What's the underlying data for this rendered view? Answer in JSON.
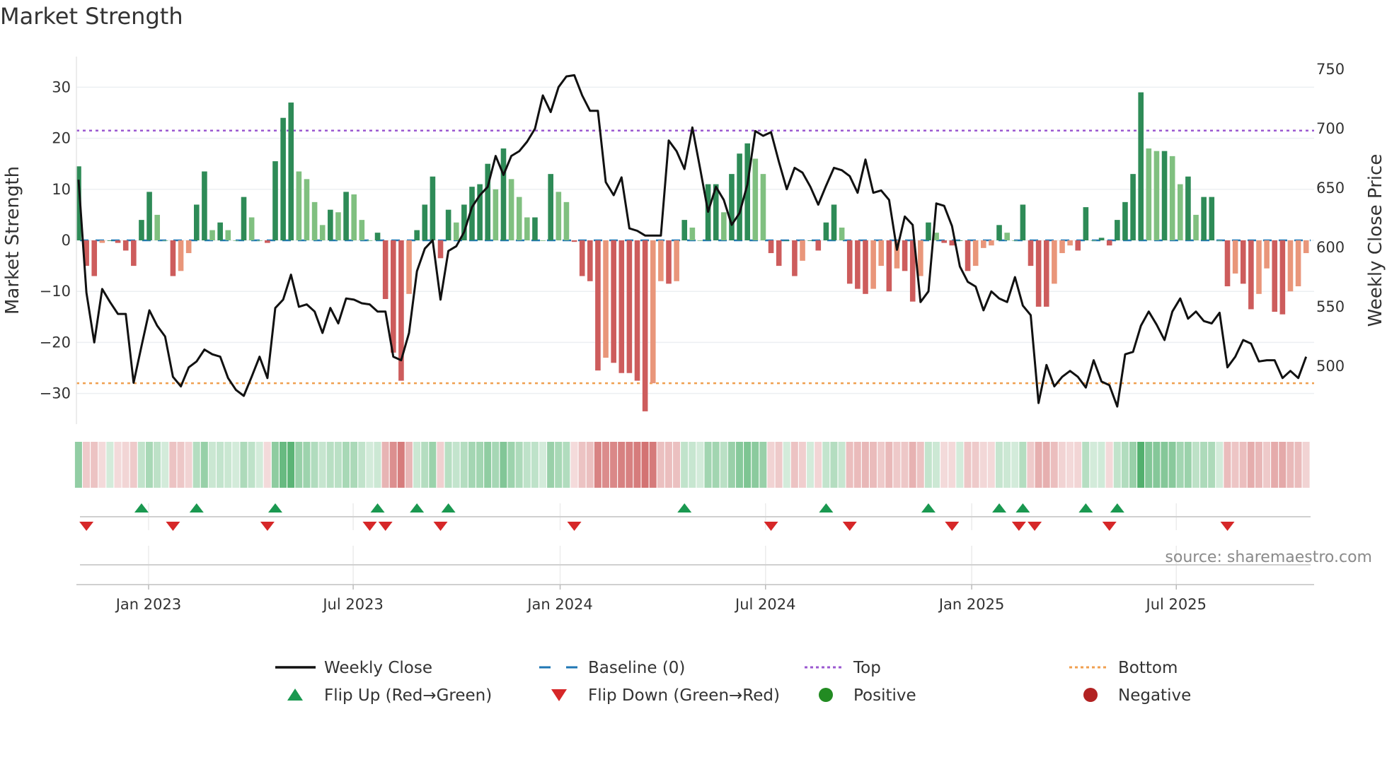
{
  "chart_data": {
    "type": "bar",
    "title": "Market Strength",
    "ylabel": "Market Strength",
    "y2label": "Weekly Close Price",
    "ylim": [
      -36,
      36
    ],
    "y2lim": [
      450,
      765
    ],
    "yticks": [
      30,
      20,
      10,
      0,
      -10,
      -20,
      -30
    ],
    "ytick_labels": [
      "30",
      "20",
      "10",
      "0",
      "−10",
      "−20",
      "−30"
    ],
    "y2ticks": [
      750,
      700,
      650,
      600,
      550,
      500
    ],
    "y2tick_labels": [
      "750",
      "700",
      "650",
      "600",
      "550",
      "500"
    ],
    "xticks": [
      {
        "label": "Jan 2023",
        "week": 8.9
      },
      {
        "label": "Jul 2023",
        "week": 34.9
      },
      {
        "label": "Jan 2024",
        "week": 61.2
      },
      {
        "label": "Jul 2024",
        "week": 87.3
      },
      {
        "label": "Jan 2025",
        "week": 113.5
      },
      {
        "label": "Jul 2025",
        "week": 139.5
      }
    ],
    "top_level": 21.5,
    "bottom_level": -28,
    "strength": [
      14.5,
      -5,
      -7,
      -0.5,
      0,
      -0.5,
      -2,
      -5,
      4,
      9.5,
      5,
      0,
      -7,
      -6,
      -2.5,
      7,
      13.5,
      2,
      3.5,
      2,
      0,
      8.5,
      4.5,
      0,
      -0.5,
      15.5,
      24,
      27,
      13.5,
      12,
      7.5,
      3,
      6,
      5.5,
      9.5,
      9,
      4,
      0,
      1.5,
      -11.5,
      -22,
      -27.5,
      -10.5,
      2,
      7,
      12.5,
      -3.5,
      6,
      3.5,
      7,
      10.5,
      11,
      15,
      10,
      18,
      12,
      8.5,
      4.5,
      4.5,
      0,
      13,
      9.5,
      7.5,
      -0.3,
      -7,
      -8,
      -25.5,
      -23,
      -24,
      -26,
      -26,
      -27.5,
      -33.5,
      -28,
      -8,
      -8.5,
      -8,
      4,
      2.5,
      0,
      11,
      11,
      5.5,
      13,
      17,
      19,
      16,
      13,
      -2.5,
      -5,
      0,
      -7,
      -4,
      0,
      -2,
      3.5,
      7,
      2.5,
      -8.5,
      -9.5,
      -10.5,
      -9.5,
      -5,
      -10,
      -5.5,
      -6,
      -12,
      -7,
      3.5,
      1.5,
      -0.5,
      -1,
      0,
      -6,
      -5,
      -1.5,
      -1,
      3,
      1.5,
      0,
      7,
      -5,
      -13,
      -13,
      -8.5,
      -2.5,
      -1,
      -2,
      6.5,
      0,
      0.5,
      -1,
      4,
      7.5,
      13,
      29,
      18,
      17.5,
      17.5,
      16.5,
      11,
      12.5,
      5,
      8.5,
      8.5,
      0,
      -9,
      -6.5,
      -8.5,
      -13.5,
      -10.5,
      -5.5,
      -14,
      -14.5,
      -10,
      -9,
      -2.5
    ],
    "weekly_close": [
      657,
      562,
      520,
      565,
      554,
      544,
      544,
      486,
      517,
      547,
      534,
      525,
      491,
      483,
      499,
      504,
      514,
      510,
      508,
      490,
      480,
      475,
      491,
      508,
      490,
      549,
      556,
      577,
      550,
      552,
      546,
      528,
      549,
      536,
      557,
      556,
      553,
      552,
      546,
      546,
      508,
      505,
      528,
      580,
      599,
      606,
      556,
      597,
      601,
      613,
      634,
      644,
      651,
      677,
      661,
      677,
      681,
      689,
      700,
      728,
      714,
      735,
      744,
      745,
      728,
      715,
      715,
      655,
      644,
      659,
      616,
      614,
      610,
      610,
      610,
      690,
      681,
      666,
      701,
      666,
      630,
      651,
      640,
      619,
      629,
      653,
      698,
      694,
      697,
      672,
      649,
      667,
      663,
      651,
      636,
      652,
      667,
      665,
      660,
      646,
      674,
      646,
      648,
      640,
      598,
      626,
      619,
      554,
      563,
      637,
      635,
      618,
      584,
      571,
      567,
      547,
      563,
      557,
      554,
      575,
      551,
      543,
      469,
      501,
      483,
      491,
      496,
      491,
      482,
      505,
      487,
      484,
      466,
      510,
      512,
      534,
      546,
      535,
      522,
      546,
      557,
      540,
      546,
      538,
      536,
      545,
      499,
      508,
      522,
      519,
      504,
      505,
      505,
      490,
      496,
      490,
      508
    ],
    "flip_up_weeks": [
      8,
      15,
      25,
      38,
      43,
      47,
      77,
      95,
      108,
      117,
      120,
      128,
      132
    ],
    "flip_down_weeks": [
      1,
      12,
      24,
      37,
      39,
      46,
      63,
      88,
      98,
      111,
      119.5,
      121.5,
      131,
      146
    ],
    "colors": {
      "pos_strong": "#2e8b57",
      "pos_weak": "#80c080",
      "neg_strong": "#cd5c5c",
      "neg_weak": "#e9967a",
      "line": "#111111",
      "baseline": "#1f77b4",
      "top": "#9b59d0",
      "bottom": "#f0a050",
      "flip_up": "#1a9850",
      "flip_down": "#d62728",
      "positive": "#228b22",
      "negative": "#b22222"
    },
    "legend": [
      {
        "label": "Weekly Close",
        "kind": "line"
      },
      {
        "label": "Baseline (0)",
        "kind": "dash"
      },
      {
        "label": "Top",
        "kind": "dot-top"
      },
      {
        "label": "Bottom",
        "kind": "dot-bottom"
      },
      {
        "label": "Flip Up (Red→Green)",
        "kind": "tri-up"
      },
      {
        "label": "Flip Down (Green→Red)",
        "kind": "tri-down"
      },
      {
        "label": "Positive",
        "kind": "dot-pos"
      },
      {
        "label": "Negative",
        "kind": "dot-neg"
      }
    ],
    "legend_placement": "bottom",
    "source": "source: sharemaestro.com"
  }
}
